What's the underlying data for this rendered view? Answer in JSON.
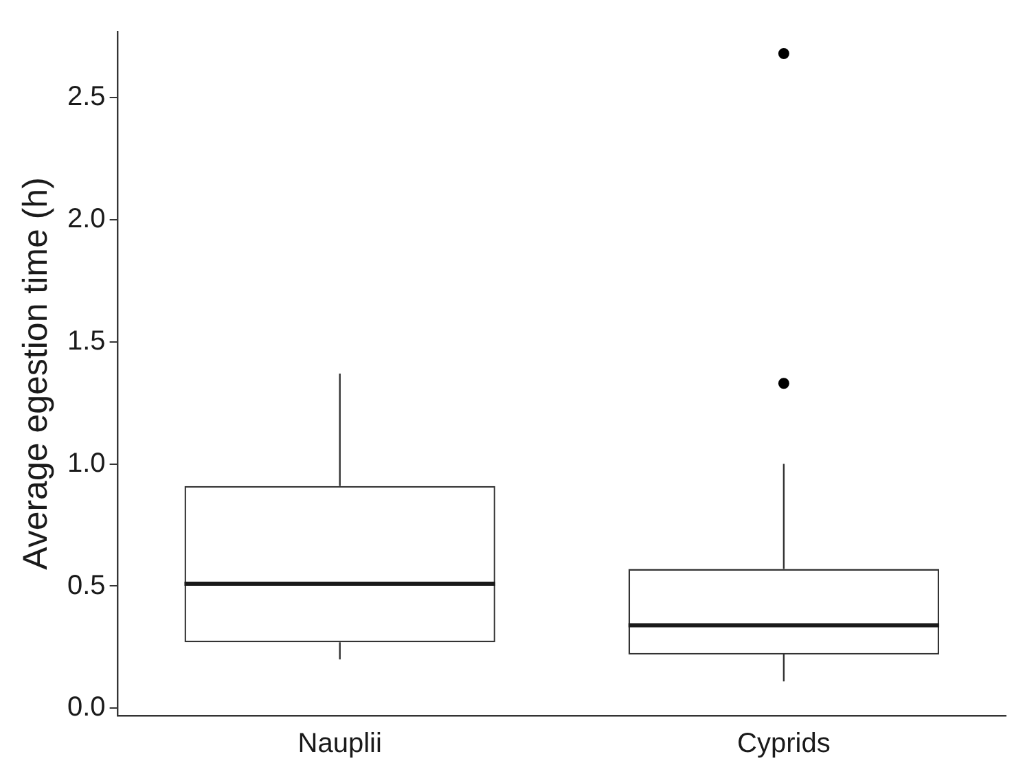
{
  "chart_data": {
    "type": "box",
    "ylabel": "Average egestion time (h)",
    "categories": [
      "Nauplii",
      "Cyprids"
    ],
    "boxes": [
      {
        "low": 0.2,
        "q1": 0.27,
        "median": 0.51,
        "q3": 0.91,
        "high": 1.37
      },
      {
        "low": 0.11,
        "q1": 0.22,
        "median": 0.34,
        "q3": 0.57,
        "high": 1.0,
        "outliers": [
          1.33,
          2.68
        ]
      }
    ],
    "ylim": [
      -0.03,
      2.77
    ],
    "yticks": [
      {
        "value": 0,
        "label": "0.0"
      },
      {
        "value": 0.5,
        "label": "0.5"
      },
      {
        "value": 1,
        "label": "1.0"
      },
      {
        "value": 1.5,
        "label": "1.5"
      },
      {
        "value": 2,
        "label": "2.0"
      },
      {
        "value": 2.5,
        "label": "2.5"
      }
    ],
    "grid": false,
    "legend": false,
    "marker": "circle"
  }
}
